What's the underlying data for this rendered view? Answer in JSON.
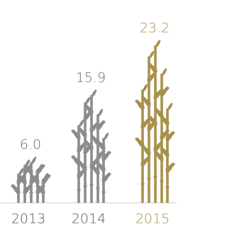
{
  "chart_data": {
    "type": "pictograph",
    "categories": [
      "2013",
      "2014",
      "2015"
    ],
    "values": [
      6.0,
      15.9,
      23.2
    ],
    "value_labels": [
      "6.0",
      "15.9",
      "23.2"
    ],
    "colors": [
      "#8c8c8c",
      "#8c8c8c",
      "#a8914a"
    ]
  }
}
